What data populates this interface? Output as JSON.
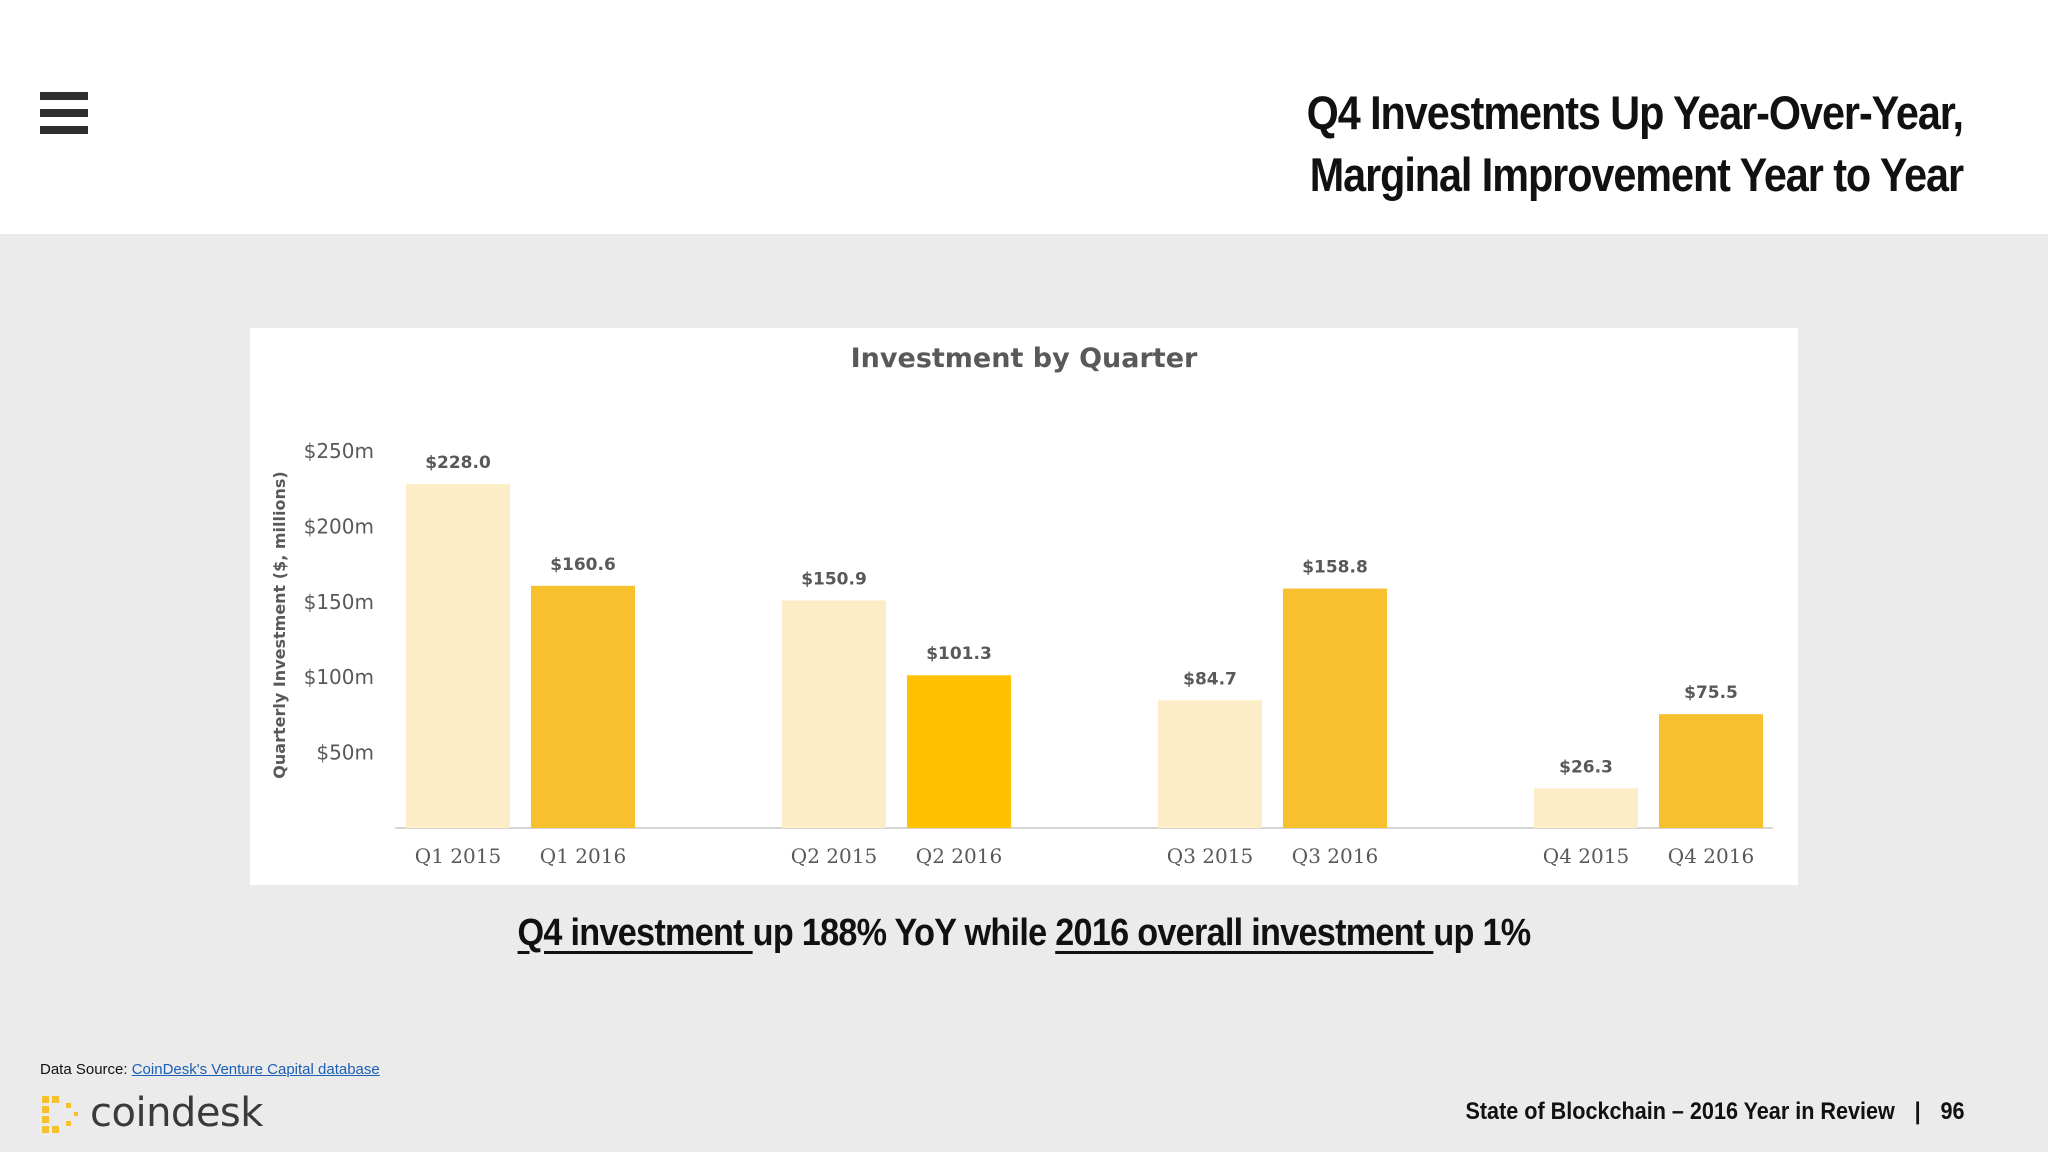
{
  "header": {
    "title_line1": "Q4 Investments Up Year-Over-Year,",
    "title_line2": "Marginal Improvement Year to Year"
  },
  "chart_data": {
    "type": "bar",
    "title": "Investment by Quarter",
    "ylabel": "Quarterly Investment ($, millions)",
    "ylim": [
      0,
      250
    ],
    "yticks": [
      "$50m",
      "$100m",
      "$150m",
      "$200m",
      "$250m"
    ],
    "categories": [
      "Q1 2015",
      "Q1 2016",
      "Q2 2015",
      "Q2 2016",
      "Q3 2015",
      "Q3 2016",
      "Q4 2015",
      "Q4 2016"
    ],
    "values": [
      228.0,
      160.6,
      150.9,
      101.3,
      84.7,
      158.8,
      26.3,
      75.5
    ],
    "labels": [
      "$228.0",
      "$160.6",
      "$150.9",
      "$101.3",
      "$84.7",
      "$158.8",
      "$26.3",
      "$75.5"
    ],
    "colors": [
      "#fcedc6",
      "#f6c12c",
      "#fcedc6",
      "#ffc100",
      "#fcedc6",
      "#f6c12c",
      "#fcedc6",
      "#f6c12c"
    ],
    "grid": false
  },
  "caption": {
    "part1": "Q4 investment ",
    "part2": "up 188% YoY while ",
    "part3": "2016 overall investment ",
    "part4": "up 1%"
  },
  "footer": {
    "source_label": "Data Source: ",
    "source_link": "CoinDesk's Venture Capital database",
    "logo_text": "coindesk",
    "report_title": "State of Blockchain – 2016 Year in Review",
    "separator": "|",
    "page_number": "96"
  },
  "icons": {
    "menu": "hamburger-menu-icon",
    "logo": "coindesk-logo-icon"
  }
}
